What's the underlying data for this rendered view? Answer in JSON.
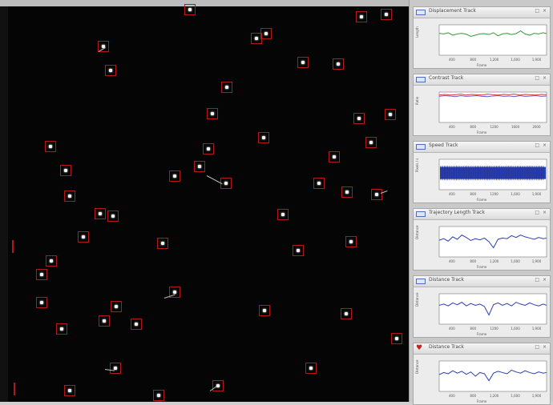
{
  "viewer": {
    "spots": [
      [
        237,
        12
      ],
      [
        451,
        21
      ],
      [
        482,
        18
      ],
      [
        129,
        58
      ],
      [
        332,
        42
      ],
      [
        320,
        48
      ],
      [
        138,
        88
      ],
      [
        378,
        78
      ],
      [
        422,
        80
      ],
      [
        283,
        109
      ],
      [
        265,
        142
      ],
      [
        448,
        148
      ],
      [
        487,
        143
      ],
      [
        63,
        183
      ],
      [
        329,
        172
      ],
      [
        260,
        186
      ],
      [
        463,
        178
      ],
      [
        82,
        213
      ],
      [
        249,
        208
      ],
      [
        218,
        220
      ],
      [
        282,
        229
      ],
      [
        417,
        196
      ],
      [
        398,
        229
      ],
      [
        433,
        240
      ],
      [
        470,
        243
      ],
      [
        87,
        245
      ],
      [
        125,
        267
      ],
      [
        141,
        270
      ],
      [
        353,
        268
      ],
      [
        104,
        296
      ],
      [
        203,
        304
      ],
      [
        438,
        302
      ],
      [
        372,
        313
      ],
      [
        64,
        326
      ],
      [
        52,
        343
      ],
      [
        218,
        365
      ],
      [
        52,
        378
      ],
      [
        145,
        383
      ],
      [
        130,
        401
      ],
      [
        170,
        405
      ],
      [
        330,
        388
      ],
      [
        432,
        392
      ],
      [
        77,
        411
      ],
      [
        495,
        423
      ],
      [
        144,
        460
      ],
      [
        388,
        460
      ],
      [
        272,
        482
      ],
      [
        87,
        488
      ],
      [
        198,
        494
      ]
    ]
  },
  "panels": [
    {
      "title": "Displacement Track",
      "icon": "graph-icon",
      "color": "#2f9e34",
      "ylabel": "Length",
      "xlabel": "Frame",
      "ticks": [
        "400",
        "800",
        "1,200",
        "1,600",
        "1,900"
      ],
      "chart_data": {
        "type": "line",
        "x": [
          0,
          80,
          160,
          240,
          320,
          400,
          480,
          560,
          640,
          720,
          800,
          880,
          960,
          1040,
          1120,
          1200,
          1280,
          1360,
          1440,
          1520,
          1600,
          1680,
          1760,
          1840,
          1900
        ],
        "series": [
          {
            "values": [
              0.72,
              0.7,
              0.74,
              0.66,
              0.7,
              0.72,
              0.69,
              0.62,
              0.66,
              0.7,
              0.71,
              0.68,
              0.74,
              0.64,
              0.7,
              0.72,
              0.68,
              0.71,
              0.8,
              0.7,
              0.66,
              0.72,
              0.7,
              0.74,
              0.71
            ]
          }
        ],
        "ylim": [
          0,
          1
        ]
      }
    },
    {
      "title": "Contrast Track",
      "icon": "graph-icon",
      "color": "#d23a3a",
      "color2": "#5a5ad8",
      "ylabel": "Ratio",
      "xlabel": "Frame",
      "ticks": [
        "400",
        "800",
        "1200",
        "1600",
        "2000"
      ],
      "chart_data": {
        "type": "line",
        "x": [
          0,
          100,
          200,
          300,
          400,
          500,
          600,
          700,
          800,
          900,
          1000,
          1100,
          1200,
          1300,
          1400,
          1500,
          1600,
          1700,
          1800,
          1900,
          2000
        ],
        "series": [
          {
            "values": [
              0.9,
              0.92,
              0.9,
              0.91,
              0.93,
              0.9,
              0.92,
              0.91,
              0.9,
              0.93,
              0.91,
              0.9,
              0.92,
              0.91,
              0.93,
              0.9,
              0.92,
              0.91,
              0.9,
              0.92,
              0.91
            ]
          },
          {
            "values": [
              0.86,
              0.88,
              0.87,
              0.85,
              0.88,
              0.86,
              0.87,
              0.88,
              0.86,
              0.85,
              0.87,
              0.88,
              0.86,
              0.87,
              0.85,
              0.88,
              0.86,
              0.87,
              0.88,
              0.86,
              0.87
            ]
          }
        ],
        "ylim": [
          0,
          1
        ]
      }
    },
    {
      "title": "Speed Track",
      "icon": "graph-icon",
      "color": "#2b3fb0",
      "ylabel": "Pixels / s",
      "xlabel": "Frame",
      "ticks": [
        "400",
        "800",
        "1200",
        "1,600",
        "1,900"
      ],
      "chart_data": {
        "type": "area",
        "x": [
          0,
          1900
        ],
        "series": [
          {
            "values": [
              0.35,
              0.75
            ]
          }
        ],
        "ylim": [
          0,
          1
        ]
      }
    },
    {
      "title": "Trajectory Length Track",
      "icon": "graph-icon",
      "color": "#2b3fb0",
      "ylabel": "Distance",
      "xlabel": "Frame",
      "ticks": [
        "400",
        "800",
        "1,200",
        "1,600",
        "1,900"
      ],
      "chart_data": {
        "type": "line",
        "x": [
          0,
          80,
          160,
          240,
          320,
          400,
          480,
          560,
          640,
          720,
          800,
          880,
          960,
          1040,
          1120,
          1200,
          1280,
          1360,
          1440,
          1520,
          1600,
          1680,
          1760,
          1840,
          1900
        ],
        "series": [
          {
            "values": [
              0.55,
              0.6,
              0.52,
              0.66,
              0.58,
              0.72,
              0.64,
              0.54,
              0.6,
              0.56,
              0.62,
              0.5,
              0.3,
              0.58,
              0.62,
              0.6,
              0.7,
              0.64,
              0.72,
              0.66,
              0.62,
              0.58,
              0.64,
              0.6,
              0.62
            ]
          }
        ],
        "ylim": [
          0,
          1
        ]
      }
    },
    {
      "title": "Distance Track",
      "icon": "graph-icon",
      "color": "#2b3fb0",
      "ylabel": "Distance",
      "xlabel": "Frame",
      "ticks": [
        "400",
        "800",
        "1200",
        "1,600",
        "1,900"
      ],
      "chart_data": {
        "type": "line",
        "x": [
          0,
          80,
          160,
          240,
          320,
          400,
          480,
          560,
          640,
          720,
          800,
          880,
          960,
          1040,
          1120,
          1200,
          1280,
          1360,
          1440,
          1520,
          1600,
          1680,
          1760,
          1840,
          1900
        ],
        "series": [
          {
            "values": [
              0.62,
              0.66,
              0.6,
              0.7,
              0.64,
              0.72,
              0.6,
              0.68,
              0.62,
              0.66,
              0.58,
              0.3,
              0.64,
              0.7,
              0.62,
              0.68,
              0.6,
              0.72,
              0.66,
              0.62,
              0.7,
              0.64,
              0.6,
              0.66,
              0.62
            ]
          }
        ],
        "ylim": [
          0,
          1
        ]
      }
    },
    {
      "title": "Distance Track",
      "icon": "heart-icon",
      "color": "#2b3fb0",
      "ylabel": "Distance",
      "xlabel": "Frame",
      "ticks": [
        "400",
        "800",
        "1,200",
        "1,600",
        "1,900"
      ],
      "chart_data": {
        "type": "line",
        "x": [
          0,
          80,
          160,
          240,
          320,
          400,
          480,
          560,
          640,
          720,
          800,
          880,
          960,
          1040,
          1120,
          1200,
          1280,
          1360,
          1440,
          1520,
          1600,
          1680,
          1760,
          1840,
          1900
        ],
        "series": [
          {
            "values": [
              0.55,
              0.62,
              0.58,
              0.68,
              0.6,
              0.66,
              0.56,
              0.64,
              0.5,
              0.62,
              0.58,
              0.35,
              0.6,
              0.66,
              0.62,
              0.58,
              0.7,
              0.64,
              0.6,
              0.68,
              0.62,
              0.58,
              0.64,
              0.6,
              0.62
            ]
          }
        ],
        "ylim": [
          0,
          1
        ]
      }
    }
  ]
}
